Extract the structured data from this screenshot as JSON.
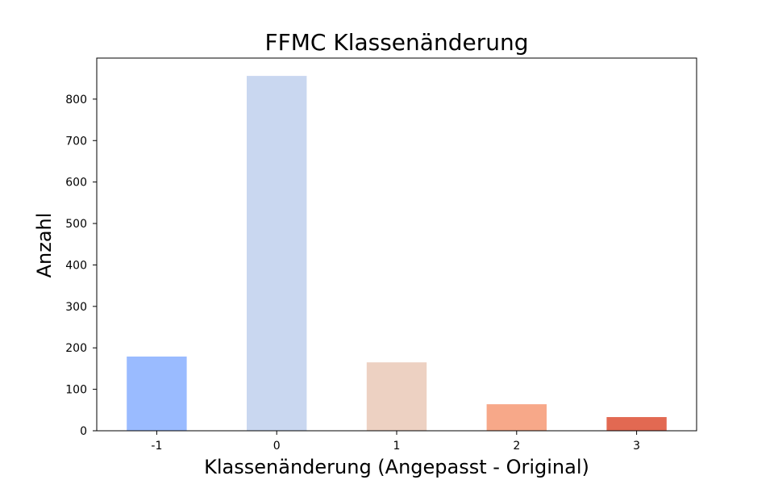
{
  "chart_data": {
    "type": "bar",
    "title": "FFMC Klassenänderung",
    "xlabel": "Klassenänderung (Angepasst - Original)",
    "ylabel": "Anzahl",
    "categories": [
      "-1",
      "0",
      "1",
      "2",
      "3"
    ],
    "values": [
      179,
      856,
      165,
      64,
      33
    ],
    "colors": [
      "#9abbff",
      "#c9d7f0",
      "#edd1c2",
      "#f7a889",
      "#e26952"
    ],
    "ylim": [
      0,
      899
    ],
    "yticks": [
      0,
      100,
      200,
      300,
      400,
      500,
      600,
      700,
      800
    ],
    "grid": false
  }
}
